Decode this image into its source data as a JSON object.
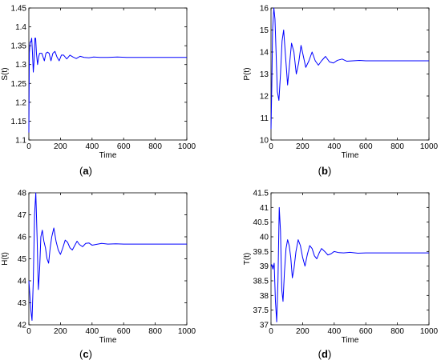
{
  "chart_data": [
    {
      "type": "line",
      "panel": "a",
      "caption": "(a)",
      "caption_letter": "a",
      "xlabel": "Time",
      "ylabel": "S(t)",
      "xlim": [
        0,
        1000
      ],
      "ylim": [
        1.1,
        1.45
      ],
      "xticks": [
        0,
        200,
        400,
        600,
        800,
        1000
      ],
      "yticks": [
        1.1,
        1.15,
        1.2,
        1.25,
        1.3,
        1.35,
        1.4,
        1.45
      ],
      "ytick_labels": [
        "1.1",
        "1.15",
        "1.2",
        "1.25",
        "1.3",
        "1.35",
        "1.4",
        "1.45"
      ],
      "series": [
        {
          "color": "#0000ff",
          "x": [
            0,
            3,
            8,
            13,
            18,
            23,
            28,
            33,
            38,
            43,
            48,
            55,
            62,
            68,
            75,
            82,
            90,
            98,
            108,
            118,
            128,
            140,
            152,
            165,
            178,
            192,
            206,
            220,
            240,
            260,
            280,
            300,
            325,
            350,
            380,
            410,
            450,
            500,
            560,
            620,
            700,
            800,
            900,
            1000
          ],
          "y": [
            1.12,
            1.33,
            1.36,
            1.36,
            1.37,
            1.33,
            1.28,
            1.31,
            1.37,
            1.37,
            1.33,
            1.3,
            1.32,
            1.33,
            1.33,
            1.33,
            1.32,
            1.31,
            1.33,
            1.333,
            1.33,
            1.31,
            1.33,
            1.335,
            1.32,
            1.31,
            1.325,
            1.325,
            1.315,
            1.325,
            1.32,
            1.316,
            1.322,
            1.319,
            1.318,
            1.32,
            1.319,
            1.319,
            1.32,
            1.319,
            1.319,
            1.319,
            1.319,
            1.319
          ]
        }
      ]
    },
    {
      "type": "line",
      "panel": "b",
      "caption": "(b)",
      "caption_letter": "b",
      "xlabel": "Time",
      "ylabel": "P(t)",
      "xlim": [
        0,
        1000
      ],
      "ylim": [
        10,
        16
      ],
      "xticks": [
        0,
        200,
        400,
        600,
        800,
        1000
      ],
      "yticks": [
        10,
        11,
        12,
        13,
        14,
        15,
        16
      ],
      "ytick_labels": [
        "10",
        "11",
        "12",
        "13",
        "14",
        "15",
        "16"
      ],
      "series": [
        {
          "color": "#0000ff",
          "x": [
            0,
            5,
            10,
            18,
            25,
            32,
            40,
            50,
            60,
            70,
            80,
            92,
            105,
            118,
            130,
            145,
            160,
            175,
            190,
            205,
            220,
            240,
            260,
            280,
            300,
            320,
            345,
            370,
            395,
            420,
            450,
            480,
            520,
            560,
            600,
            700,
            800,
            900,
            1000
          ],
          "y": [
            10.5,
            12.5,
            15.0,
            16.0,
            15.5,
            14.0,
            12.2,
            11.8,
            13.0,
            14.5,
            15.0,
            13.8,
            12.5,
            13.5,
            14.4,
            14.0,
            13.0,
            13.5,
            14.3,
            13.8,
            13.3,
            13.6,
            14.0,
            13.6,
            13.4,
            13.6,
            13.8,
            13.55,
            13.5,
            13.62,
            13.68,
            13.58,
            13.6,
            13.62,
            13.6,
            13.6,
            13.6,
            13.6,
            13.6
          ]
        }
      ]
    },
    {
      "type": "line",
      "panel": "c",
      "caption": "(c)",
      "caption_letter": "c",
      "xlabel": "Time",
      "ylabel": "H(t)",
      "xlim": [
        0,
        1000
      ],
      "ylim": [
        42,
        48
      ],
      "xticks": [
        0,
        200,
        400,
        600,
        800,
        1000
      ],
      "yticks": [
        42,
        43,
        44,
        45,
        46,
        47,
        48
      ],
      "ytick_labels": [
        "42",
        "43",
        "44",
        "45",
        "46",
        "47",
        "48"
      ],
      "series": [
        {
          "color": "#0000ff",
          "x": [
            0,
            5,
            12,
            20,
            28,
            36,
            44,
            52,
            60,
            68,
            76,
            85,
            95,
            105,
            115,
            125,
            135,
            145,
            158,
            172,
            186,
            200,
            215,
            230,
            245,
            260,
            275,
            290,
            305,
            320,
            340,
            360,
            380,
            400,
            430,
            460,
            500,
            550,
            600,
            700,
            800,
            900,
            1000
          ],
          "y": [
            44.0,
            43.5,
            42.7,
            42.2,
            44.0,
            47.0,
            48.0,
            46.0,
            43.6,
            44.5,
            46.0,
            46.3,
            45.8,
            45.5,
            45.0,
            44.8,
            45.5,
            46.0,
            46.4,
            45.8,
            45.4,
            45.2,
            45.5,
            45.85,
            45.75,
            45.5,
            45.4,
            45.6,
            45.8,
            45.65,
            45.55,
            45.7,
            45.72,
            45.62,
            45.66,
            45.7,
            45.67,
            45.68,
            45.67,
            45.67,
            45.67,
            45.67,
            45.67
          ]
        }
      ]
    },
    {
      "type": "line",
      "panel": "d",
      "caption": "(d)",
      "caption_letter": "d",
      "xlabel": "Time",
      "ylabel": "T(t)",
      "xlim": [
        0,
        1000
      ],
      "ylim": [
        37,
        41.5
      ],
      "xticks": [
        0,
        200,
        400,
        600,
        800,
        1000
      ],
      "yticks": [
        37,
        37.5,
        38,
        38.5,
        39,
        39.5,
        40,
        40.5,
        41,
        41.5
      ],
      "ytick_labels": [
        "37",
        "37.5",
        "38",
        "38.5",
        "39",
        "39.5",
        "40",
        "40.5",
        "41",
        "41.5"
      ],
      "series": [
        {
          "color": "#0000ff",
          "x": [
            0,
            5,
            12,
            20,
            28,
            36,
            44,
            52,
            60,
            68,
            76,
            85,
            95,
            105,
            115,
            125,
            135,
            145,
            158,
            172,
            186,
            200,
            215,
            230,
            245,
            260,
            275,
            290,
            305,
            320,
            340,
            360,
            380,
            400,
            430,
            460,
            500,
            550,
            600,
            700,
            800,
            900,
            1000
          ],
          "y": [
            39.0,
            39.05,
            38.9,
            39.1,
            37.8,
            37.1,
            38.5,
            41.0,
            40.2,
            38.2,
            37.8,
            38.8,
            39.6,
            39.9,
            39.7,
            39.3,
            38.6,
            38.9,
            39.5,
            39.9,
            39.7,
            39.3,
            39.0,
            39.4,
            39.7,
            39.6,
            39.35,
            39.25,
            39.45,
            39.6,
            39.5,
            39.38,
            39.42,
            39.5,
            39.46,
            39.45,
            39.47,
            39.44,
            39.45,
            39.45,
            39.45,
            39.45,
            39.45
          ]
        }
      ]
    }
  ]
}
